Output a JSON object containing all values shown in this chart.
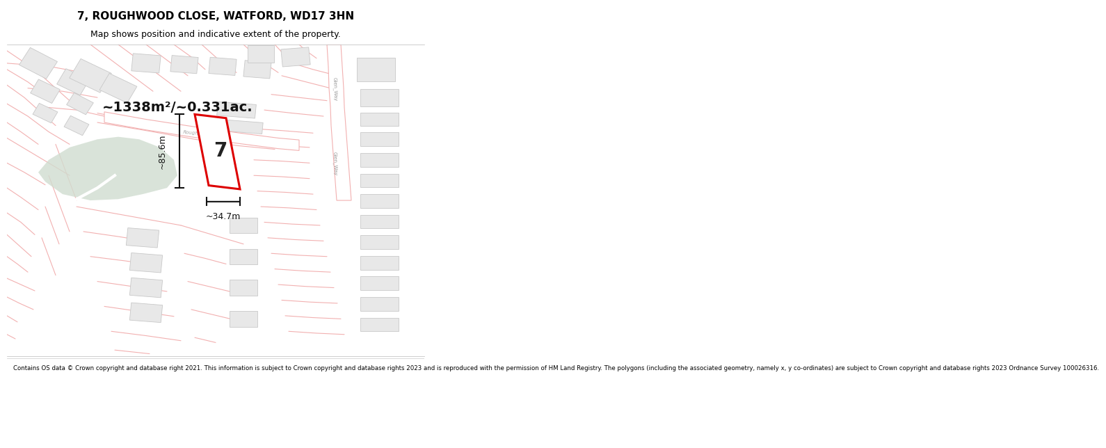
{
  "title_line1": "7, ROUGHWOOD CLOSE, WATFORD, WD17 3HN",
  "title_line2": "Map shows position and indicative extent of the property.",
  "footer_text": "Contains OS data © Crown copyright and database right 2021. This information is subject to Crown copyright and database rights 2023 and is reproduced with the permission of HM Land Registry. The polygons (including the associated geometry, namely x, y co-ordinates) are subject to Crown copyright and database rights 2023 Ordnance Survey 100026316.",
  "area_label": "~1338m²/~0.331ac.",
  "property_number": "7",
  "dim_vertical": "~85.6m",
  "dim_horizontal": "~34.7m",
  "road_label": "Roughwood_Close",
  "road_label2_top": "Glen_Way",
  "road_label2_bot": "Glen_Way",
  "map_bg": "#ffffff",
  "plot_color": "#dd0000",
  "plot_fill": "#ffffff",
  "road_color": "#f2b0b0",
  "building_fill": "#e8e8e8",
  "building_edge": "#c8c8c8",
  "green_fill": "#d0ddd0",
  "road_fill": "#ffffff",
  "road_edge": "#d0d0d0",
  "title_bg": "#ffffff",
  "footer_bg": "#ffffff"
}
